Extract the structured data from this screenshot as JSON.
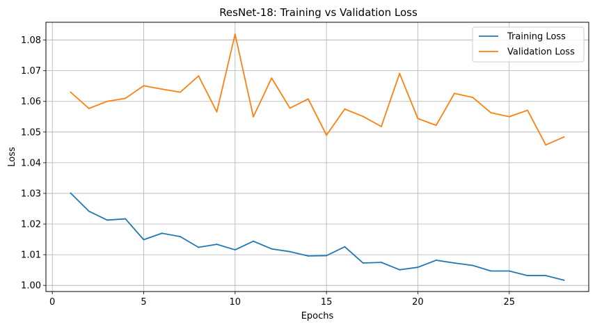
{
  "chart_data": {
    "type": "line",
    "title": "ResNet-18: Training vs Validation Loss",
    "xlabel": "Epochs",
    "ylabel": "Loss",
    "xlim": [
      -0.35,
      29.35
    ],
    "ylim": [
      0.998,
      1.0858
    ],
    "grid": true,
    "legend_position": "top-right",
    "x_ticks": [
      0,
      5,
      10,
      15,
      20,
      25
    ],
    "x_tick_labels": [
      "0",
      "5",
      "10",
      "15",
      "20",
      "25"
    ],
    "y_ticks": [
      1.0,
      1.01,
      1.02,
      1.03,
      1.04,
      1.05,
      1.06,
      1.07,
      1.08
    ],
    "y_tick_labels": [
      "1.00",
      "1.01",
      "1.02",
      "1.03",
      "1.04",
      "1.05",
      "1.06",
      "1.07",
      "1.08"
    ],
    "x": [
      1,
      2,
      3,
      4,
      5,
      6,
      7,
      8,
      9,
      10,
      11,
      12,
      13,
      14,
      15,
      16,
      17,
      18,
      19,
      20,
      21,
      22,
      23,
      24,
      25,
      26,
      27,
      28
    ],
    "series": [
      {
        "name": "Training Loss",
        "color": "#1f77b4",
        "values": [
          1.0301,
          1.0242,
          1.0213,
          1.0217,
          1.0149,
          1.017,
          1.0159,
          1.0124,
          1.0134,
          1.0116,
          1.0144,
          1.0119,
          1.011,
          1.0096,
          1.0097,
          1.0126,
          1.0073,
          1.0075,
          1.0051,
          1.0059,
          1.0082,
          1.0073,
          1.0065,
          1.0047,
          1.0047,
          1.0032,
          1.0032,
          1.0017
        ]
      },
      {
        "name": "Validation Loss",
        "color": "#ff7f0e",
        "values": [
          1.063,
          1.0577,
          1.06,
          1.061,
          1.0651,
          1.064,
          1.063,
          1.0683,
          1.0566,
          1.0819,
          1.055,
          1.0676,
          1.0578,
          1.0608,
          1.049,
          1.0575,
          1.0551,
          1.0518,
          1.0691,
          1.0544,
          1.0522,
          1.0626,
          1.0613,
          1.0563,
          1.055,
          1.0571,
          1.0458,
          1.0484
        ]
      }
    ]
  }
}
